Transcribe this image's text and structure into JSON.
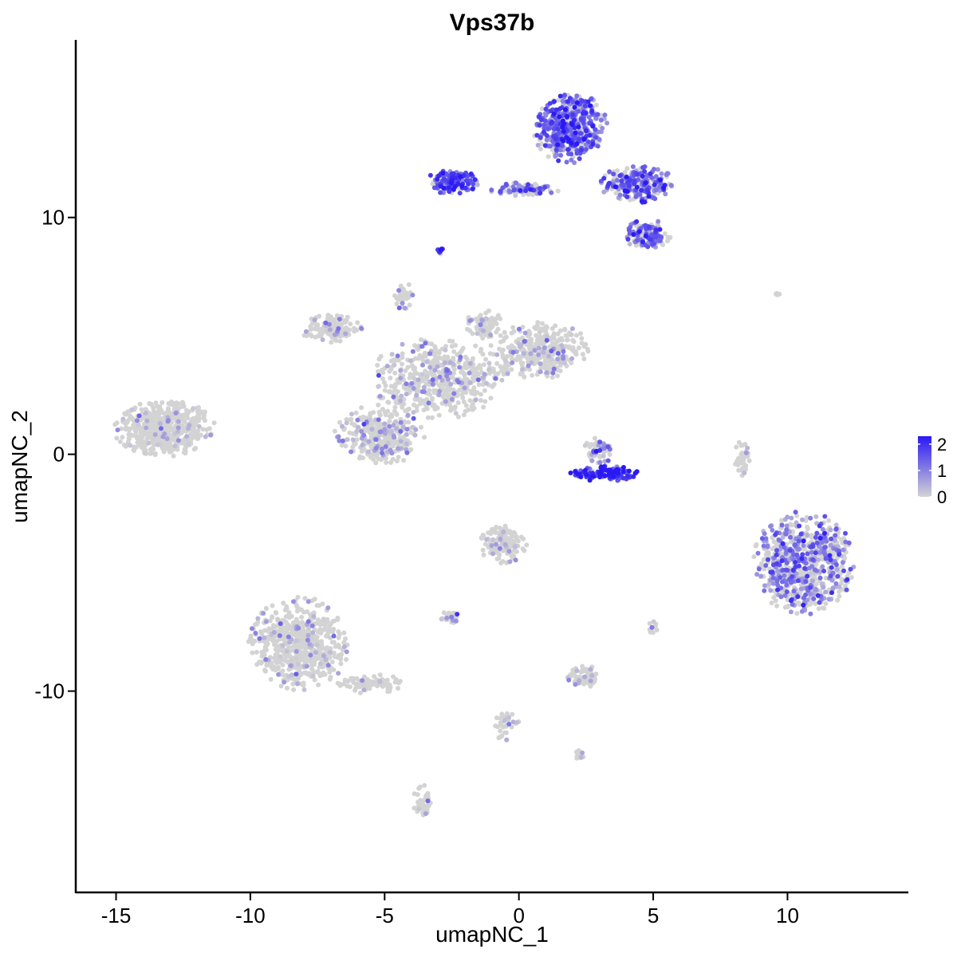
{
  "chart_data": {
    "type": "scatter",
    "title": "Vps37b",
    "xlabel": "umapNC_1",
    "ylabel": "umapNC_2",
    "xlim": [
      -16.5,
      14.5
    ],
    "ylim": [
      -18.5,
      17.5
    ],
    "x_ticks": [
      -15,
      -10,
      -5,
      0,
      5,
      10
    ],
    "y_ticks": [
      -10,
      0,
      10
    ],
    "x_tick_labels": [
      "-15",
      "-10",
      "-5",
      "0",
      "5",
      "10"
    ],
    "y_tick_labels": [
      "-10",
      "0",
      "10"
    ],
    "grid": false,
    "legend": {
      "placement": "right",
      "type": "colorbar",
      "range": [
        0,
        2.3
      ],
      "ticks": [
        0,
        1,
        2
      ],
      "tick_labels": [
        "0",
        "1",
        "2"
      ],
      "low_color": "#d3d3d3",
      "high_color": "#2a18f5"
    },
    "clusters": [
      {
        "id": "c1",
        "cx": -13.2,
        "cy": 1.1,
        "rx": 1.9,
        "ry": 1.2,
        "n": 520,
        "expr": 0.08
      },
      {
        "id": "c2a",
        "cx": -5.2,
        "cy": 0.8,
        "rx": 1.7,
        "ry": 1.3,
        "n": 320,
        "expr": 0.35
      },
      {
        "id": "c2b",
        "cx": -3.0,
        "cy": 3.2,
        "rx": 2.6,
        "ry": 1.7,
        "n": 520,
        "expr": 0.3
      },
      {
        "id": "c2c",
        "cx": -7.0,
        "cy": 5.3,
        "rx": 1.2,
        "ry": 0.6,
        "n": 130,
        "expr": 0.15
      },
      {
        "id": "c2d",
        "cx": 0.8,
        "cy": 4.4,
        "rx": 1.9,
        "ry": 1.2,
        "n": 330,
        "expr": 0.25
      },
      {
        "id": "c2e",
        "cx": -1.3,
        "cy": 5.5,
        "rx": 0.7,
        "ry": 0.7,
        "n": 70,
        "expr": 0.25
      },
      {
        "id": "c2f",
        "cx": -4.3,
        "cy": 6.6,
        "rx": 0.4,
        "ry": 0.8,
        "n": 40,
        "expr": 0.4
      },
      {
        "id": "c3a",
        "cx": 1.9,
        "cy": 13.8,
        "rx": 1.4,
        "ry": 1.5,
        "n": 470,
        "expr": 1.3
      },
      {
        "id": "c3b",
        "cx": -2.5,
        "cy": 11.5,
        "rx": 1.0,
        "ry": 0.5,
        "n": 160,
        "expr": 1.5
      },
      {
        "id": "c3c",
        "cx": 0.2,
        "cy": 11.2,
        "rx": 1.4,
        "ry": 0.3,
        "n": 80,
        "expr": 1.1
      },
      {
        "id": "c3d",
        "cx": 4.4,
        "cy": 11.4,
        "rx": 1.4,
        "ry": 0.8,
        "n": 260,
        "expr": 1.2
      },
      {
        "id": "c3e",
        "cx": 4.8,
        "cy": 9.3,
        "rx": 1.0,
        "ry": 0.6,
        "n": 140,
        "expr": 1.2
      },
      {
        "id": "c3f",
        "cx": -2.9,
        "cy": 8.6,
        "rx": 0.15,
        "ry": 0.2,
        "n": 12,
        "expr": 2.1
      },
      {
        "id": "c4",
        "cx": 3.2,
        "cy": -0.8,
        "rx": 1.3,
        "ry": 0.35,
        "n": 120,
        "expr": 1.9
      },
      {
        "id": "c4b",
        "cx": 3.0,
        "cy": 0.2,
        "rx": 0.6,
        "ry": 0.6,
        "n": 60,
        "expr": 0.8
      },
      {
        "id": "c5",
        "cx": 10.6,
        "cy": -4.6,
        "rx": 1.9,
        "ry": 2.2,
        "n": 720,
        "expr": 0.9
      },
      {
        "id": "c6",
        "cx": -8.2,
        "cy": -8.0,
        "rx": 1.9,
        "ry": 2.0,
        "n": 620,
        "expr": 0.15
      },
      {
        "id": "c6b",
        "cx": -5.5,
        "cy": -9.7,
        "rx": 1.3,
        "ry": 0.4,
        "n": 90,
        "expr": 0.05
      },
      {
        "id": "c7",
        "cx": -0.6,
        "cy": -3.8,
        "rx": 0.9,
        "ry": 0.8,
        "n": 150,
        "expr": 0.1
      },
      {
        "id": "c8",
        "cx": 2.4,
        "cy": -9.4,
        "rx": 0.6,
        "ry": 0.5,
        "n": 70,
        "expr": 0.2
      },
      {
        "id": "c9",
        "cx": -2.6,
        "cy": -6.9,
        "rx": 0.4,
        "ry": 0.25,
        "n": 25,
        "expr": 0.3
      },
      {
        "id": "c10",
        "cx": 8.3,
        "cy": -0.1,
        "rx": 0.3,
        "ry": 0.8,
        "n": 40,
        "expr": 0.05
      },
      {
        "id": "c11",
        "cx": -3.6,
        "cy": -14.6,
        "rx": 0.35,
        "ry": 0.7,
        "n": 40,
        "expr": 0.05
      },
      {
        "id": "c12",
        "cx": -0.5,
        "cy": -11.5,
        "rx": 0.6,
        "ry": 0.6,
        "n": 35,
        "expr": 0.15
      },
      {
        "id": "c13",
        "cx": 2.2,
        "cy": -12.7,
        "rx": 0.3,
        "ry": 0.2,
        "n": 12,
        "expr": 0.2
      },
      {
        "id": "c14",
        "cx": 5.0,
        "cy": -7.3,
        "rx": 0.2,
        "ry": 0.3,
        "n": 12,
        "expr": 0.15
      },
      {
        "id": "c15",
        "cx": 9.6,
        "cy": 6.8,
        "rx": 0.2,
        "ry": 0.1,
        "n": 5,
        "expr": 0.4
      }
    ]
  }
}
